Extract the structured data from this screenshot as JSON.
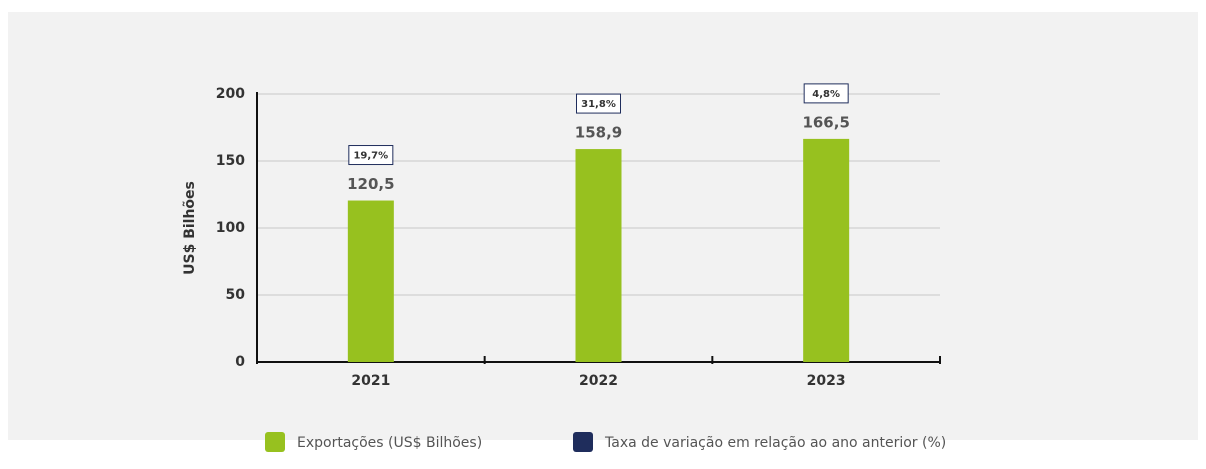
{
  "chart_data": {
    "type": "bar",
    "y_label": "US$ Bilhões",
    "categories": [
      "2021",
      "2022",
      "2023"
    ],
    "series": [
      {
        "name": "Exportações (US$ Bilhões)",
        "color": "#97c11f",
        "values": [
          120.5,
          158.9,
          166.5
        ],
        "value_labels": [
          "120,5",
          "158,9",
          "166,5"
        ]
      },
      {
        "name": "Taxa de variação em relação ao ano anterior (%)",
        "color": "#1f2d5c",
        "values": [
          19.7,
          31.8,
          4.8
        ],
        "value_labels": [
          "19,7%",
          "31,8%",
          "4,8%"
        ]
      }
    ],
    "ylim": [
      0,
      200
    ],
    "yticks": [
      0,
      50,
      100,
      150,
      200
    ],
    "grid": true
  }
}
